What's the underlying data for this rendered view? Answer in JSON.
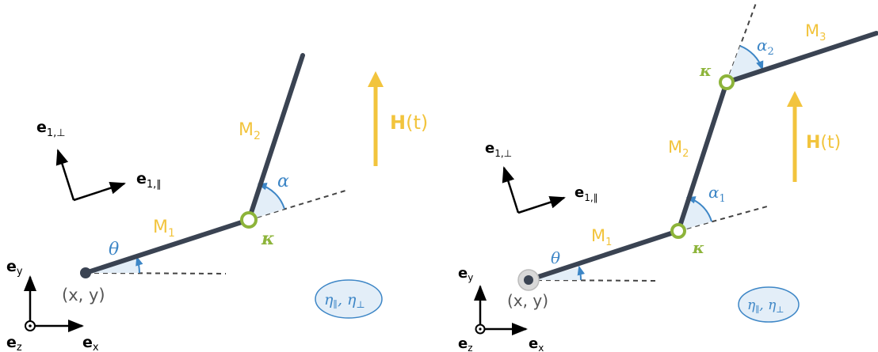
{
  "colors": {
    "rod": "#3a4352",
    "gold": "#f2c43d",
    "blue": "#3d86c6",
    "blue_fill": "#e3eef8",
    "green": "#8db43a",
    "black": "#000000",
    "gray": "#555555"
  },
  "left": {
    "field": {
      "bold": "H",
      "rest": "(t)"
    },
    "frame": {
      "e1_perp": "e",
      "e1_perp_sub": "1,⊥",
      "e1_par": "e",
      "e1_par_sub": "1,∥"
    },
    "axes": {
      "ex": "e",
      "ex_sub": "x",
      "ey": "e",
      "ey_sub": "y",
      "ez": "e",
      "ez_sub": "z"
    },
    "segments": [
      {
        "label": "M",
        "sub": "1"
      },
      {
        "label": "M",
        "sub": "2"
      }
    ],
    "angles": {
      "theta": "θ",
      "alpha": "α"
    },
    "joint_label": "κ",
    "position_label": "(x, y)",
    "viscosity": {
      "text": "η",
      "sub1": "∥",
      "comma": ", η",
      "sub2": "⊥"
    }
  },
  "right": {
    "field": {
      "bold": "H",
      "rest": "(t)"
    },
    "frame": {
      "e1_perp": "e",
      "e1_perp_sub": "1,⊥",
      "e1_par": "e",
      "e1_par_sub": "1,∥"
    },
    "axes": {
      "ex": "e",
      "ex_sub": "x",
      "ey": "e",
      "ey_sub": "y",
      "ez": "e",
      "ez_sub": "z"
    },
    "segments": [
      {
        "label": "M",
        "sub": "1"
      },
      {
        "label": "M",
        "sub": "2"
      },
      {
        "label": "M",
        "sub": "3"
      }
    ],
    "angles": {
      "theta": "θ",
      "alpha1": "α",
      "alpha1_sub": "1",
      "alpha2": "α",
      "alpha2_sub": "2"
    },
    "joint_label_1": "κ",
    "joint_label_2": "κ",
    "position_label": "(x, y)",
    "viscosity": {
      "text": "η",
      "sub1": "∥",
      "comma": ", η",
      "sub2": "⊥"
    }
  }
}
